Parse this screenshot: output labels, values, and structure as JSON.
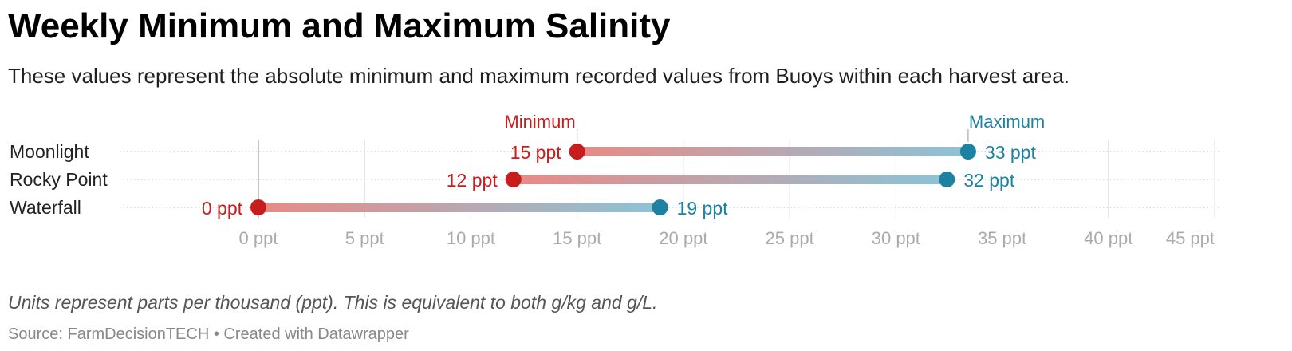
{
  "header": {
    "title": "Weekly Minimum and Maximum Salinity",
    "subtitle": "These values represent the absolute minimum and maximum recorded values from Buoys within each harvest area."
  },
  "footer": {
    "note": "Units represent parts per thousand (ppt). This is equivalent to both g/kg and g/L.",
    "source_prefix": "Source: ",
    "source_name": "FarmDecisionTECH",
    "separator": " • ",
    "credit": "Created with Datawrapper"
  },
  "colors": {
    "minimum": "#c71e1d",
    "maximum": "#1d81a2",
    "grid": "#dddddd",
    "axis_label": "#aaaaaa",
    "category_label": "#222222"
  },
  "chart_data": {
    "type": "range-dot",
    "categories": [
      "Moonlight",
      "Rocky Point",
      "Waterfall"
    ],
    "series": [
      {
        "name": "Minimum",
        "values": [
          15,
          12,
          0
        ]
      },
      {
        "name": "Maximum",
        "values": [
          33.4,
          32.4,
          18.9
        ]
      }
    ],
    "value_labels": {
      "Minimum": [
        "15 ppt",
        "12 ppt",
        "0 ppt"
      ],
      "Maximum": [
        "33 ppt",
        "32 ppt",
        "19 ppt"
      ]
    },
    "x_ticks": [
      0,
      5,
      10,
      15,
      20,
      25,
      30,
      35,
      40,
      45
    ],
    "x_tick_labels": [
      "0 ppt",
      "5 ppt",
      "10 ppt",
      "15 ppt",
      "20 ppt",
      "25 ppt",
      "30 ppt",
      "35 ppt",
      "40 ppt",
      "45 ppt"
    ],
    "xlim": [
      0,
      45
    ],
    "xlabel": "",
    "ylabel": "",
    "grid": true,
    "legend": "inline-above-first-row"
  }
}
